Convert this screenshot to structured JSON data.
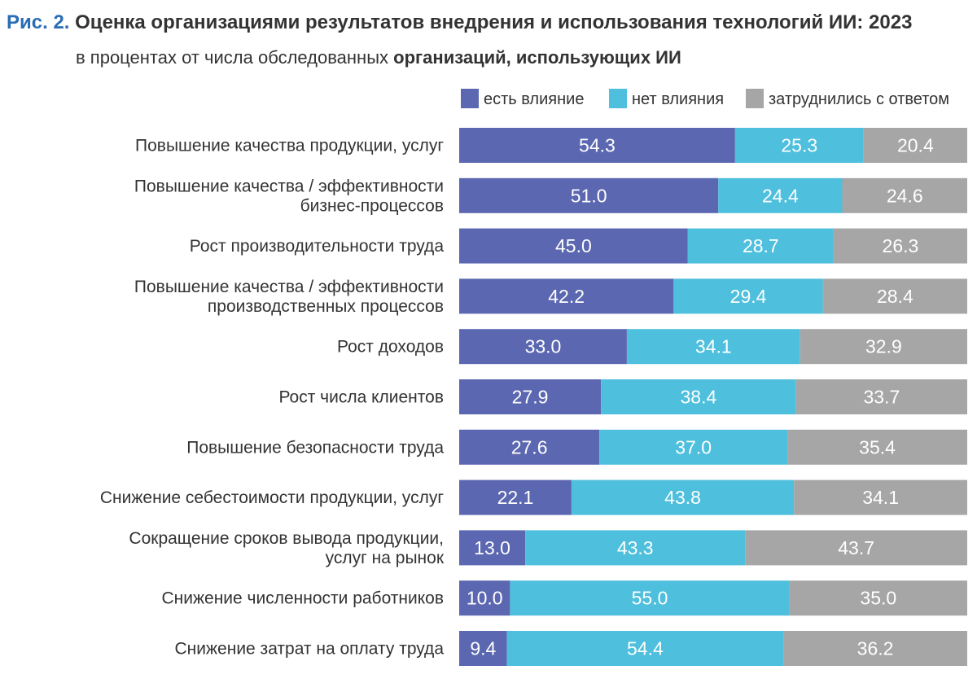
{
  "header": {
    "figure_label": "Рис. 2.",
    "title": "Оценка организациями результатов внедрения и использования технологий ИИ: 2023",
    "subtitle_normal": "в процентах от числа обследованных ",
    "subtitle_bold": "организаций, использующих ИИ"
  },
  "colors": {
    "effect": "#5b67b0",
    "no_effect": "#4ebfdc",
    "undecided": "#a6a6a6",
    "title_accent": "#2a6db5"
  },
  "chart_data": {
    "type": "bar",
    "orientation": "horizontal",
    "stacked": true,
    "xlim": [
      0,
      100
    ],
    "grid": false,
    "legend_position": "top-right",
    "categories": [
      [
        "Повышение качества продукции, услуг"
      ],
      [
        "Повышение качества / эффективности",
        "бизнес-процессов"
      ],
      [
        "Рост производительности труда"
      ],
      [
        "Повышение качества / эффективности",
        "производственных процессов"
      ],
      [
        "Рост доходов"
      ],
      [
        "Рост числа клиентов"
      ],
      [
        "Повышение безопасности труда"
      ],
      [
        "Снижение себестоимости продукции, услуг"
      ],
      [
        "Сокращение сроков вывода продукции,",
        "услуг на рынок"
      ],
      [
        "Снижение численности работников"
      ],
      [
        "Снижение затрат на оплату труда"
      ]
    ],
    "series": [
      {
        "name": "есть влияние",
        "color": "#5b67b0",
        "values": [
          54.3,
          51.0,
          45.0,
          42.2,
          33.0,
          27.9,
          27.6,
          22.1,
          13.0,
          10.0,
          9.4
        ]
      },
      {
        "name": "нет влияния",
        "color": "#4ebfdc",
        "values": [
          25.3,
          24.4,
          28.7,
          29.4,
          34.1,
          38.4,
          37.0,
          43.8,
          43.3,
          55.0,
          54.4
        ]
      },
      {
        "name": "затруднились с ответом",
        "color": "#a6a6a6",
        "values": [
          20.4,
          24.6,
          26.3,
          28.4,
          32.9,
          33.7,
          35.4,
          34.1,
          43.7,
          35.0,
          36.2
        ]
      }
    ]
  }
}
